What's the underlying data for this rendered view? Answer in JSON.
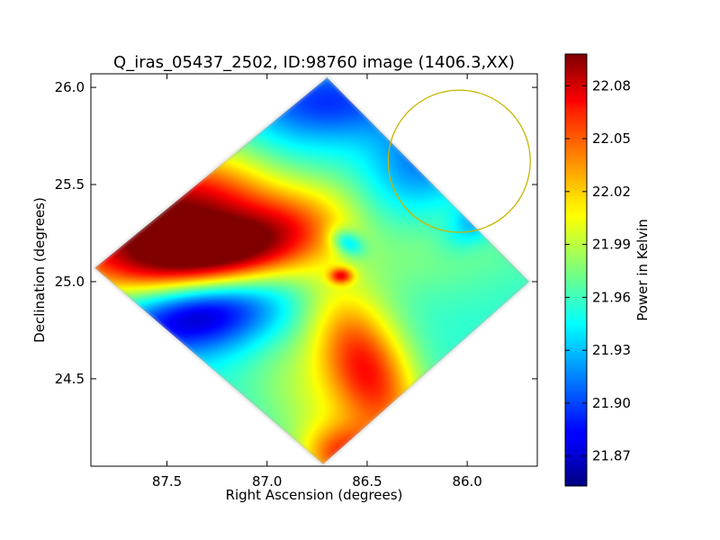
{
  "chart_data": {
    "type": "heatmap",
    "title": "Q_iras_05437_2502, ID:98760 image (1406.3,XX)",
    "xlabel": "Right Ascension (degrees)",
    "ylabel": "Declination (degrees)",
    "colorbar_label": "Power in Kelvin",
    "xlim": [
      87.88,
      85.65
    ],
    "ylim": [
      24.05,
      26.07
    ],
    "x_ticks": [
      87.5,
      87.0,
      86.5,
      86.0
    ],
    "x_tick_labels": [
      "87.5",
      "87.0",
      "86.5",
      "86.0"
    ],
    "y_ticks": [
      24.5,
      25.0,
      25.5,
      26.0
    ],
    "y_tick_labels": [
      "24.5",
      "25.0",
      "25.5",
      "26.0"
    ],
    "colorbar_range": [
      21.853,
      22.098
    ],
    "colorbar_ticks": [
      21.87,
      21.9,
      21.93,
      21.96,
      21.99,
      22.02,
      22.05,
      22.08
    ],
    "colorbar_tick_labels": [
      "21.87",
      "21.90",
      "21.93",
      "21.96",
      "21.99",
      "22.02",
      "22.05",
      "22.08"
    ],
    "colormap": "jet",
    "footprint_vertices_ra_dec": [
      [
        86.7,
        26.05
      ],
      [
        87.86,
        25.07
      ],
      [
        86.72,
        24.06
      ],
      [
        85.69,
        25.0
      ]
    ],
    "circle": {
      "center_ra": 86.04,
      "center_dec": 25.62,
      "radius_deg": 0.366,
      "color": "#c8b400"
    },
    "background_level": 21.955,
    "features": [
      {
        "ra": 87.55,
        "dec": 25.34,
        "value": 22.095,
        "radius_deg": 0.28,
        "stretch": 2.2,
        "angle_deg": -15
      },
      {
        "ra": 87.05,
        "dec": 25.2,
        "value": 22.04,
        "radius_deg": 0.22,
        "stretch": 2.8,
        "angle_deg": -20
      },
      {
        "ra": 87.35,
        "dec": 25.12,
        "value": 22.02,
        "radius_deg": 0.16,
        "stretch": 3.0,
        "angle_deg": -8
      },
      {
        "ra": 87.35,
        "dec": 24.84,
        "value": 21.855,
        "radius_deg": 0.2,
        "stretch": 2.2,
        "angle_deg": -8
      },
      {
        "ra": 86.5,
        "dec": 24.55,
        "value": 22.06,
        "radius_deg": 0.22,
        "stretch": 2.0,
        "angle_deg": 65
      },
      {
        "ra": 86.8,
        "dec": 24.4,
        "value": 21.985,
        "radius_deg": 0.26,
        "stretch": 1.6,
        "angle_deg": 60
      },
      {
        "ra": 86.62,
        "dec": 24.1,
        "value": 22.035,
        "radius_deg": 0.16,
        "stretch": 1.3,
        "angle_deg": 0
      },
      {
        "ra": 86.7,
        "dec": 25.93,
        "value": 21.895,
        "radius_deg": 0.2,
        "stretch": 2.2,
        "angle_deg": 0
      },
      {
        "ra": 86.22,
        "dec": 25.62,
        "value": 21.905,
        "radius_deg": 0.24,
        "stretch": 2.0,
        "angle_deg": -38
      },
      {
        "ra": 85.95,
        "dec": 25.32,
        "value": 21.915,
        "radius_deg": 0.1,
        "stretch": 1.8,
        "angle_deg": -40
      },
      {
        "ra": 86.6,
        "dec": 25.2,
        "value": 21.9,
        "radius_deg": 0.06,
        "stretch": 1.5,
        "angle_deg": 30
      },
      {
        "ra": 86.25,
        "dec": 25.15,
        "value": 21.975,
        "radius_deg": 0.24,
        "stretch": 2.6,
        "angle_deg": -5
      },
      {
        "ra": 86.03,
        "dec": 25.0,
        "value": 21.955,
        "radius_deg": 0.28,
        "stretch": 1.3,
        "angle_deg": 0
      },
      {
        "ra": 86.9,
        "dec": 25.63,
        "value": 21.935,
        "radius_deg": 0.22,
        "stretch": 1.4,
        "angle_deg": 0
      },
      {
        "ra": 86.63,
        "dec": 25.03,
        "value": 22.03,
        "radius_deg": 0.04,
        "stretch": 1.5,
        "angle_deg": 0
      }
    ]
  }
}
